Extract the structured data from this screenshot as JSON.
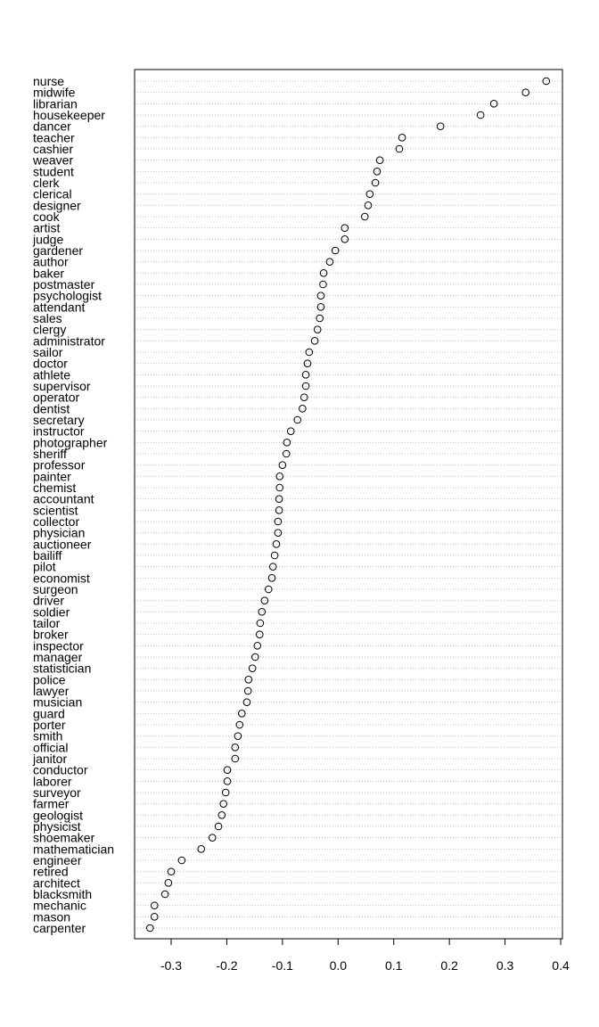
{
  "chart_data": {
    "type": "scatter",
    "subtype": "dotchart",
    "title": "",
    "xlabel": "",
    "ylabel": "",
    "xlim": [
      -0.36,
      0.4
    ],
    "xticks": [
      -0.3,
      -0.2,
      -0.1,
      0.0,
      0.1,
      0.2,
      0.3,
      0.4
    ],
    "xtick_labels": [
      "-0.3",
      "-0.2",
      "-0.1",
      "0.0",
      "0.1",
      "0.2",
      "0.3",
      "0.4"
    ],
    "grid": "horizontal dotted lines per row",
    "marker": "open circle",
    "colors": {
      "marker": "#000000",
      "grid": "#bebebe",
      "axis": "#000000"
    },
    "categories": [
      "nurse",
      "midwife",
      "librarian",
      "housekeeper",
      "dancer",
      "teacher",
      "cashier",
      "weaver",
      "student",
      "clerk",
      "clerical",
      "designer",
      "cook",
      "artist",
      "judge",
      "gardener",
      "author",
      "baker",
      "postmaster",
      "psychologist",
      "attendant",
      "sales",
      "clergy",
      "administrator",
      "sailor",
      "doctor",
      "athlete",
      "supervisor",
      "operator",
      "dentist",
      "secretary",
      "instructor",
      "photographer",
      "sheriff",
      "professor",
      "painter",
      "chemist",
      "accountant",
      "scientist",
      "collector",
      "physician",
      "auctioneer",
      "bailiff",
      "pilot",
      "economist",
      "surgeon",
      "driver",
      "soldier",
      "tailor",
      "broker",
      "inspector",
      "manager",
      "statistician",
      "police",
      "lawyer",
      "musician",
      "guard",
      "porter",
      "smith",
      "official",
      "janitor",
      "conductor",
      "laborer",
      "surveyor",
      "farmer",
      "geologist",
      "physicist",
      "shoemaker",
      "mathematician",
      "engineer",
      "retired",
      "architect",
      "blacksmith",
      "mechanic",
      "mason",
      "carpenter"
    ],
    "values": [
      0.374,
      0.337,
      0.28,
      0.256,
      0.184,
      0.115,
      0.11,
      0.075,
      0.07,
      0.067,
      0.057,
      0.054,
      0.048,
      0.012,
      0.012,
      -0.005,
      -0.015,
      -0.026,
      -0.027,
      -0.031,
      -0.031,
      -0.033,
      -0.037,
      -0.042,
      -0.052,
      -0.055,
      -0.058,
      -0.058,
      -0.061,
      -0.064,
      -0.073,
      -0.085,
      -0.092,
      -0.093,
      -0.1,
      -0.105,
      -0.105,
      -0.106,
      -0.106,
      -0.108,
      -0.108,
      -0.111,
      -0.114,
      -0.117,
      -0.119,
      -0.125,
      -0.132,
      -0.137,
      -0.14,
      -0.141,
      -0.145,
      -0.149,
      -0.154,
      -0.161,
      -0.162,
      -0.164,
      -0.173,
      -0.177,
      -0.18,
      -0.185,
      -0.185,
      -0.199,
      -0.199,
      -0.202,
      -0.206,
      -0.209,
      -0.215,
      -0.226,
      -0.246,
      -0.281,
      -0.3,
      -0.305,
      -0.311,
      -0.33,
      -0.33,
      -0.338
    ]
  }
}
